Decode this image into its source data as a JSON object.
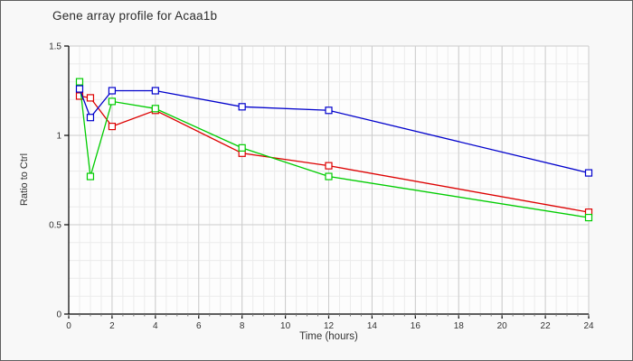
{
  "window": {
    "title": "Gene array profile for Acaa1b"
  },
  "chart_data": {
    "type": "line",
    "title": "Gene array profile for Acaa1b",
    "xlabel": "Time (hours)",
    "ylabel": "Ratio to Ctrl",
    "x": [
      0.5,
      1,
      2,
      4,
      8,
      12,
      24
    ],
    "series": [
      {
        "name": "series-red",
        "color": "#dd0000",
        "values": [
          1.22,
          1.21,
          1.05,
          1.14,
          0.9,
          0.83,
          0.57
        ]
      },
      {
        "name": "series-green",
        "color": "#00cc00",
        "values": [
          1.3,
          0.77,
          1.19,
          1.15,
          0.93,
          0.77,
          0.54
        ]
      },
      {
        "name": "series-blue",
        "color": "#0000cc",
        "values": [
          1.26,
          1.1,
          1.25,
          1.25,
          1.16,
          1.14,
          0.79
        ]
      }
    ],
    "xlim": [
      0,
      24
    ],
    "ylim": [
      0,
      1.5
    ],
    "x_major_ticks": [
      0,
      2,
      4,
      6,
      8,
      10,
      12,
      14,
      16,
      18,
      20,
      22,
      24
    ],
    "x_tick_labels": [
      "0",
      "2",
      "4",
      "6",
      "8",
      "10",
      "12",
      "14",
      "16",
      "18",
      "20",
      "22",
      "24"
    ],
    "y_major_ticks": [
      0,
      0.5,
      1,
      1.5
    ],
    "y_tick_labels": [
      "0",
      "0.5",
      "1",
      "1.5"
    ],
    "x_minor_step": 0.5,
    "y_minor_step": 0.1,
    "grid": true,
    "legend_position": "none",
    "marker": "open-square",
    "colors": {
      "grid_minor": "#ebebeb",
      "grid_major": "#cccccc",
      "axis": "#000000",
      "tick_text": "#333333",
      "plot_bg": "#fdfdfd",
      "page_bg": "#f8f8f8",
      "border": "#5f5f5f"
    }
  }
}
